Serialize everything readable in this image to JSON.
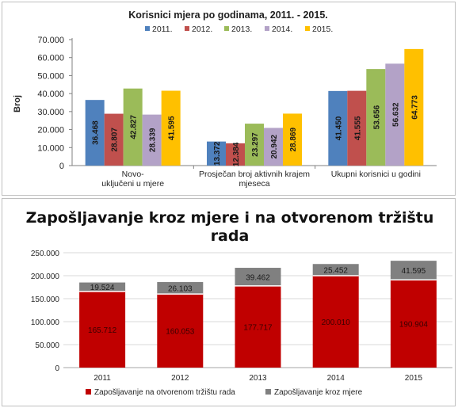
{
  "chart_data": [
    {
      "type": "bar",
      "title": "Korisnici mjera po godinama, 2011. - 2015.",
      "ylabel": "Broj",
      "ylim": [
        0,
        70000
      ],
      "yticks": [
        "0",
        "10.000",
        "20.000",
        "30.000",
        "40.000",
        "50.000",
        "60.000",
        "70.000"
      ],
      "legend_position": "top",
      "categories": [
        [
          "Novo-",
          "uključeni u mjere"
        ],
        [
          "Prosječan broj aktivnih krajem",
          "mjeseca"
        ],
        [
          "Ukupni korisnici u godini"
        ]
      ],
      "series": [
        {
          "name": "2011.",
          "color": "#4f81bd",
          "values": [
            36468,
            13372,
            41450
          ],
          "labels": [
            "36.468",
            "13.372",
            "41.450"
          ]
        },
        {
          "name": "2012.",
          "color": "#c0504d",
          "values": [
            28807,
            12384,
            41555
          ],
          "labels": [
            "28.807",
            "12.384",
            "41.555"
          ]
        },
        {
          "name": "2013.",
          "color": "#9bbb59",
          "values": [
            42827,
            23297,
            53656
          ],
          "labels": [
            "42.827",
            "23.297",
            "53.656"
          ]
        },
        {
          "name": "2014.",
          "color": "#b3a2c7",
          "values": [
            28339,
            20942,
            56632
          ],
          "labels": [
            "28.339",
            "20.942",
            "56.632"
          ]
        },
        {
          "name": "2015.",
          "color": "#ffc000",
          "values": [
            41595,
            28869,
            64773
          ],
          "labels": [
            "41.595",
            "28.869",
            "64.773"
          ]
        }
      ]
    },
    {
      "type": "bar",
      "stacked": true,
      "title": [
        "Zapošljavanje kroz mjere i na otvorenom tržištu",
        "rada"
      ],
      "ylim": [
        0,
        250000
      ],
      "yticks": [
        "0",
        "50.000",
        "100.000",
        "150.000",
        "200.000",
        "250.000"
      ],
      "legend_position": "bottom",
      "categories": [
        "2011",
        "2012",
        "2013",
        "2014",
        "2015"
      ],
      "series": [
        {
          "name": "Zapošljavanje na otvorenom tržištu rada",
          "color": "#c00000",
          "values": [
            165712,
            160053,
            177717,
            200010,
            190904
          ],
          "labels": [
            "165.712",
            "160.053",
            "177.717",
            "200.010",
            "190.904"
          ]
        },
        {
          "name": "Zapošljavanje kroz mjere",
          "color": "#808080",
          "values": [
            19524,
            26103,
            39462,
            25452,
            41595
          ],
          "labels": [
            "19.524",
            "26.103",
            "39.462",
            "25.452",
            "41.595"
          ]
        }
      ]
    }
  ]
}
